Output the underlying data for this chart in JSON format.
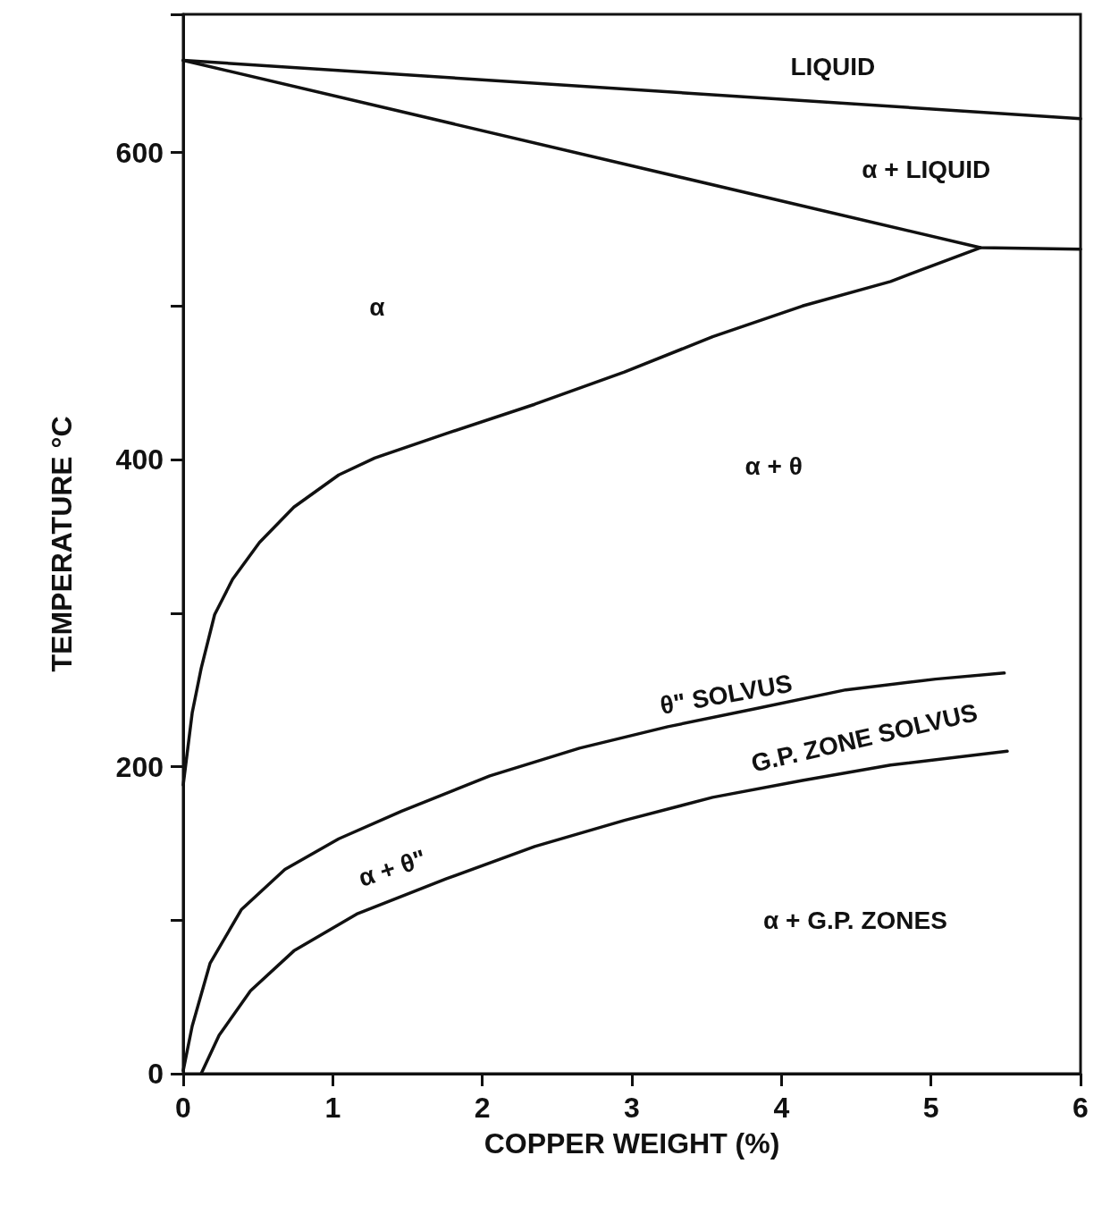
{
  "chart_data": {
    "type": "line",
    "xlabel": "COPPER WEIGHT (%)",
    "ylabel": "TEMPERATURE °C",
    "xlim": [
      0,
      6
    ],
    "xticks": [
      0,
      1,
      2,
      3,
      4,
      5,
      6
    ],
    "ylim": [
      0,
      690
    ],
    "yticks": [
      0,
      {
        "value": 100,
        "label": null
      },
      200,
      {
        "value": 300,
        "label": null
      },
      400,
      {
        "value": 500,
        "label": null
      },
      600
    ],
    "grid": false,
    "marker": "none",
    "line_style": "solid",
    "series": [
      {
        "color": "#111111",
        "x": [
          0,
          6
        ],
        "values": [
          660,
          622
        ]
      },
      {
        "color": "#111111",
        "x": [
          0,
          5.33,
          6
        ],
        "values": [
          660,
          538,
          537
        ]
      },
      {
        "color": "#111111",
        "x": [
          5.33,
          4.73,
          4.14,
          3.54,
          2.95,
          2.35,
          1.76,
          1.28,
          1.04,
          0.74,
          0.51,
          0.33,
          0.21,
          0.12,
          0.06,
          0
        ],
        "values": [
          538,
          516,
          500,
          480,
          457,
          436,
          417,
          401,
          390,
          369,
          346,
          322,
          299,
          264,
          235,
          188
        ]
      },
      {
        "color": "#111111",
        "x": [
          0,
          0.06,
          0.18,
          0.39,
          0.68,
          1.04,
          1.46,
          2.05,
          2.65,
          3.24,
          3.84,
          4.43,
          5.03,
          5.49
        ],
        "values": [
          2,
          31,
          72,
          107,
          133,
          153,
          171,
          194,
          212,
          226,
          238,
          250,
          257,
          261
        ]
      },
      {
        "color": "#111111",
        "x": [
          0.12,
          0.24,
          0.45,
          0.74,
          1.16,
          1.76,
          2.35,
          2.95,
          3.54,
          4.14,
          4.73,
          5.51
        ],
        "values": [
          0,
          25,
          54,
          80,
          104,
          127,
          148,
          165,
          180,
          191,
          201,
          210
        ]
      }
    ],
    "annotations": [
      "LIQUID",
      "α + LIQUID",
      "α",
      "α + θ",
      "θ\" SOLVUS",
      "G.P. ZONE SOLVUS",
      "α + θ\"",
      "α + G.P. ZONES"
    ]
  }
}
